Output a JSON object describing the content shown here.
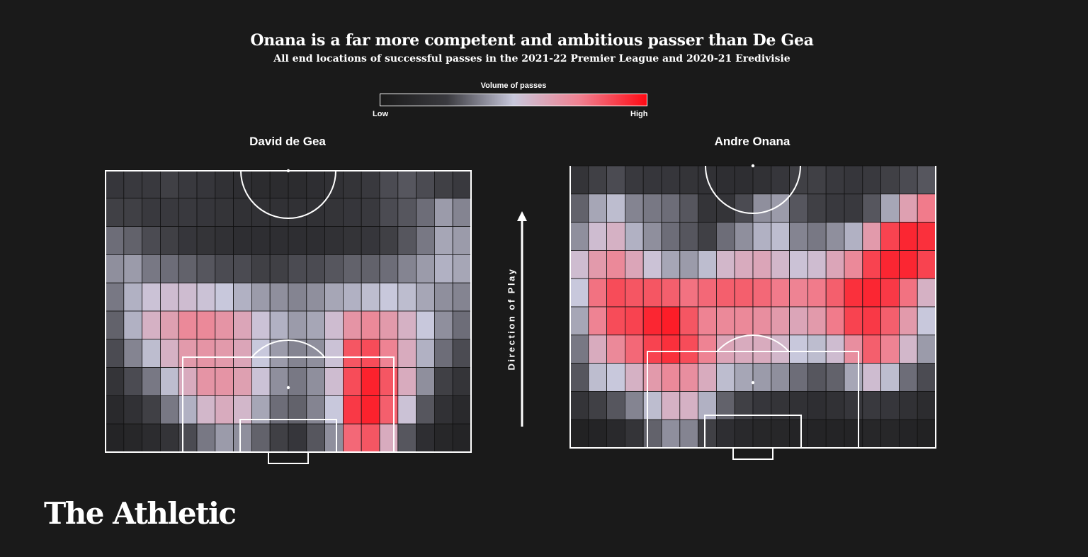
{
  "title": "Onana is a far more competent and ambitious passer than De Gea",
  "subtitle": "All end locations of successful passes in the 2021-22 Premier League and 2020-21 Eredivisie",
  "legend": {
    "title": "Volume of passes",
    "low": "Low",
    "high": "High",
    "colors": [
      "#1a1a1a",
      "#3a3a3f",
      "#c8c8dc",
      "#f08090",
      "#ff0a14"
    ]
  },
  "direction_label": "Direction of Play",
  "brand": "The Athletic",
  "chart_data": [
    {
      "type": "heatmap",
      "name": "David de Gea",
      "value_scale": "0 = Low, 1 = High (volume of passes)",
      "rows_order": "top (opponent end) to bottom (own goal)",
      "grid": [
        [
          0.22,
          0.24,
          0.24,
          0.26,
          0.24,
          0.22,
          0.18,
          0.16,
          0.14,
          0.14,
          0.14,
          0.16,
          0.18,
          0.2,
          0.24,
          0.28,
          0.3,
          0.28,
          0.26,
          0.24
        ],
        [
          0.26,
          0.26,
          0.24,
          0.24,
          0.24,
          0.22,
          0.2,
          0.18,
          0.18,
          0.18,
          0.18,
          0.18,
          0.2,
          0.22,
          0.24,
          0.28,
          0.3,
          0.34,
          0.42,
          0.38
        ],
        [
          0.34,
          0.32,
          0.28,
          0.26,
          0.22,
          0.2,
          0.18,
          0.16,
          0.16,
          0.16,
          0.16,
          0.16,
          0.18,
          0.2,
          0.22,
          0.26,
          0.3,
          0.36,
          0.44,
          0.42
        ],
        [
          0.4,
          0.42,
          0.36,
          0.34,
          0.32,
          0.3,
          0.28,
          0.28,
          0.26,
          0.26,
          0.28,
          0.28,
          0.3,
          0.32,
          0.32,
          0.34,
          0.38,
          0.42,
          0.46,
          0.44
        ],
        [
          0.36,
          0.46,
          0.52,
          0.54,
          0.54,
          0.52,
          0.5,
          0.46,
          0.42,
          0.4,
          0.38,
          0.4,
          0.44,
          0.46,
          0.48,
          0.5,
          0.48,
          0.44,
          0.4,
          0.38
        ],
        [
          0.32,
          0.46,
          0.58,
          0.64,
          0.72,
          0.72,
          0.68,
          0.62,
          0.52,
          0.46,
          0.42,
          0.44,
          0.54,
          0.68,
          0.72,
          0.66,
          0.58,
          0.5,
          0.4,
          0.34
        ],
        [
          0.28,
          0.38,
          0.48,
          0.58,
          0.66,
          0.68,
          0.66,
          0.62,
          0.5,
          0.42,
          0.38,
          0.4,
          0.52,
          0.84,
          0.86,
          0.74,
          0.6,
          0.46,
          0.34,
          0.28
        ],
        [
          0.2,
          0.28,
          0.36,
          0.48,
          0.6,
          0.68,
          0.68,
          0.64,
          0.52,
          0.4,
          0.36,
          0.4,
          0.54,
          0.86,
          0.95,
          0.84,
          0.6,
          0.4,
          0.26,
          0.2
        ],
        [
          0.12,
          0.18,
          0.26,
          0.36,
          0.46,
          0.56,
          0.6,
          0.56,
          0.44,
          0.34,
          0.32,
          0.38,
          0.5,
          0.9,
          0.95,
          0.82,
          0.52,
          0.3,
          0.18,
          0.12
        ],
        [
          0.08,
          0.1,
          0.14,
          0.2,
          0.28,
          0.36,
          0.42,
          0.4,
          0.32,
          0.26,
          0.22,
          0.3,
          0.4,
          0.8,
          0.84,
          0.6,
          0.3,
          0.16,
          0.1,
          0.08
        ]
      ]
    },
    {
      "type": "heatmap",
      "name": "Andre Onana",
      "value_scale": "0 = Low, 1 = High (volume of passes)",
      "rows_order": "top (opponent end) to bottom (own goal)",
      "grid": [
        [
          0.2,
          0.26,
          0.28,
          0.24,
          0.22,
          0.22,
          0.2,
          0.18,
          0.16,
          0.16,
          0.18,
          0.22,
          0.26,
          0.26,
          0.24,
          0.22,
          0.24,
          0.26,
          0.28,
          0.3
        ],
        [
          0.32,
          0.44,
          0.48,
          0.38,
          0.36,
          0.34,
          0.3,
          0.2,
          0.2,
          0.28,
          0.4,
          0.42,
          0.3,
          0.26,
          0.24,
          0.24,
          0.3,
          0.44,
          0.64,
          0.76
        ],
        [
          0.4,
          0.54,
          0.58,
          0.46,
          0.4,
          0.34,
          0.3,
          0.26,
          0.34,
          0.4,
          0.46,
          0.48,
          0.38,
          0.36,
          0.4,
          0.46,
          0.66,
          0.88,
          0.94,
          0.92
        ],
        [
          0.54,
          0.66,
          0.72,
          0.62,
          0.52,
          0.44,
          0.42,
          0.48,
          0.56,
          0.6,
          0.62,
          0.56,
          0.52,
          0.54,
          0.62,
          0.72,
          0.88,
          0.94,
          0.94,
          0.88
        ],
        [
          0.5,
          0.78,
          0.86,
          0.84,
          0.84,
          0.82,
          0.78,
          0.8,
          0.82,
          0.82,
          0.8,
          0.76,
          0.74,
          0.76,
          0.82,
          0.92,
          0.94,
          0.9,
          0.78,
          0.58
        ],
        [
          0.44,
          0.74,
          0.86,
          0.88,
          0.94,
          0.96,
          0.84,
          0.74,
          0.72,
          0.72,
          0.7,
          0.66,
          0.62,
          0.66,
          0.76,
          0.88,
          0.9,
          0.82,
          0.66,
          0.5
        ],
        [
          0.36,
          0.6,
          0.72,
          0.8,
          0.88,
          0.92,
          0.86,
          0.74,
          0.62,
          0.6,
          0.6,
          0.56,
          0.5,
          0.48,
          0.54,
          0.7,
          0.82,
          0.74,
          0.56,
          0.42
        ],
        [
          0.3,
          0.48,
          0.5,
          0.58,
          0.66,
          0.72,
          0.7,
          0.6,
          0.48,
          0.44,
          0.42,
          0.4,
          0.34,
          0.3,
          0.32,
          0.44,
          0.54,
          0.48,
          0.34,
          0.28
        ],
        [
          0.2,
          0.26,
          0.3,
          0.38,
          0.48,
          0.58,
          0.58,
          0.46,
          0.32,
          0.26,
          0.22,
          0.2,
          0.18,
          0.16,
          0.18,
          0.22,
          0.24,
          0.22,
          0.18,
          0.14
        ],
        [
          0.06,
          0.08,
          0.12,
          0.2,
          0.32,
          0.4,
          0.38,
          0.26,
          0.16,
          0.12,
          0.1,
          0.1,
          0.08,
          0.08,
          0.08,
          0.08,
          0.1,
          0.1,
          0.08,
          0.06
        ]
      ]
    }
  ]
}
